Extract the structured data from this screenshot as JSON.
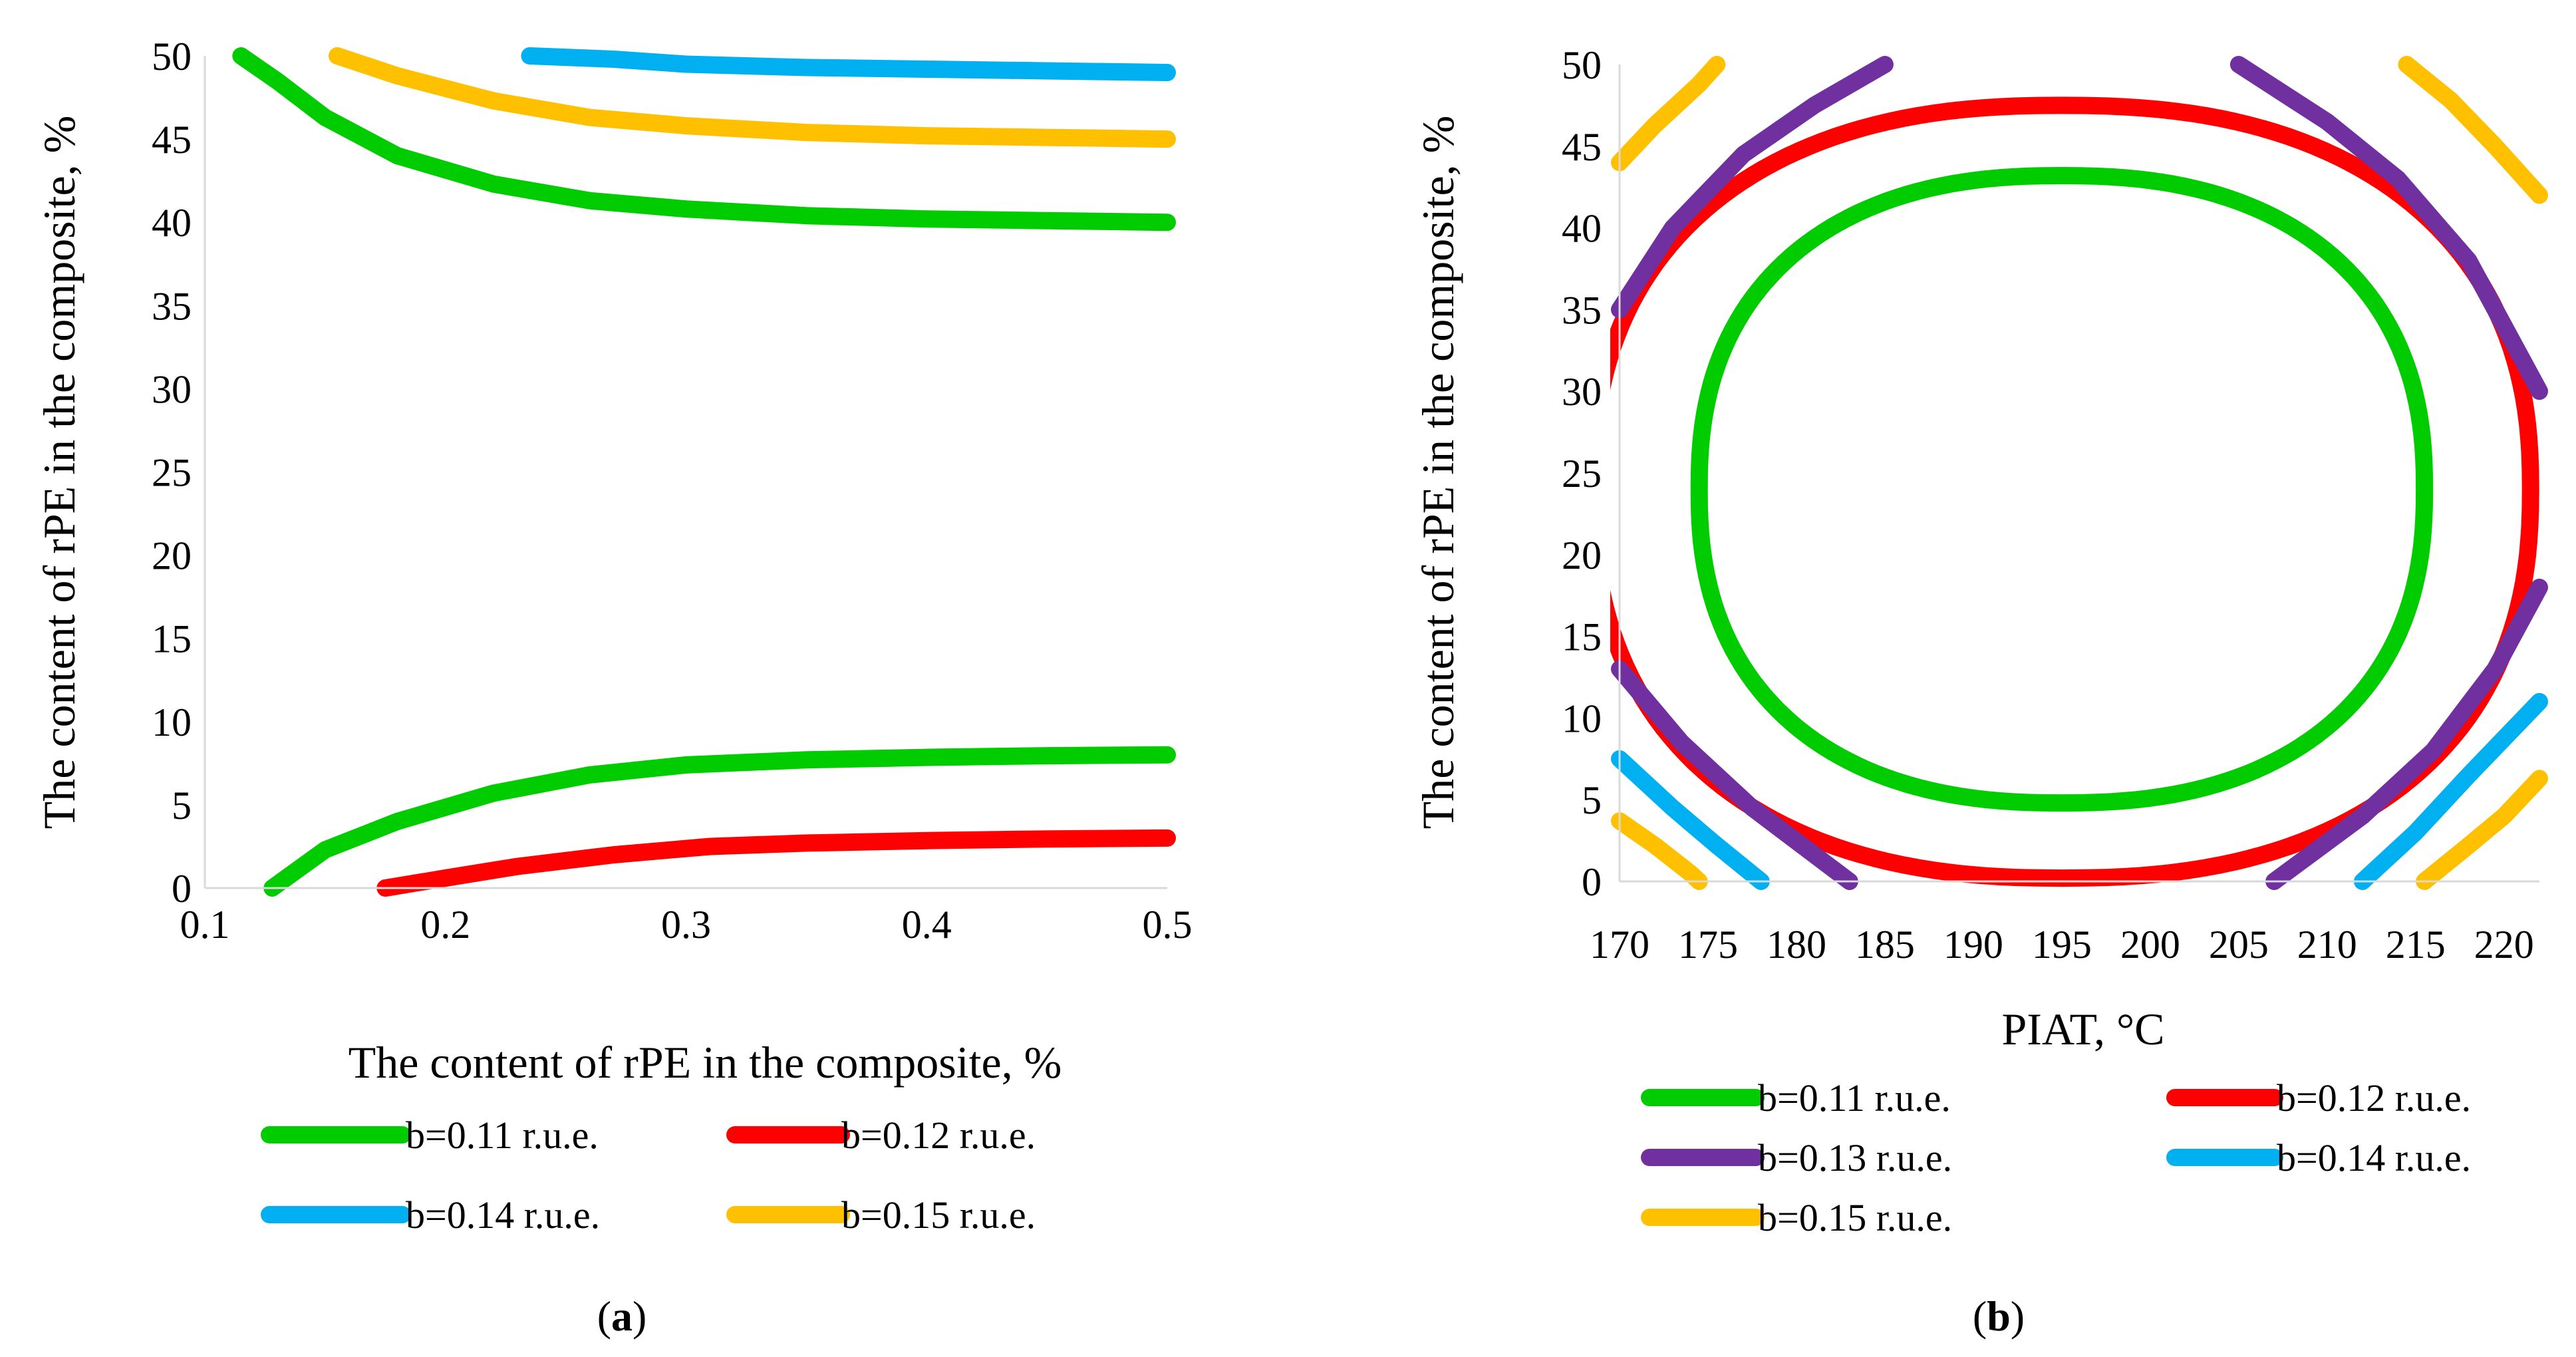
{
  "chart_data": [
    {
      "type": "line",
      "panel": "a",
      "caption": "(a)",
      "caption_letter": "a",
      "title": "",
      "xlabel": "The content of rPE in the composite, %",
      "ylabel": "The content of rPE in the composite, %",
      "xlim": [
        0.1,
        0.5
      ],
      "ylim": [
        0,
        50
      ],
      "xticks": [
        "0.1",
        "0.2",
        "0.3",
        "0.4",
        "0.5"
      ],
      "yticks": [
        "0",
        "5",
        "10",
        "15",
        "20",
        "25",
        "30",
        "35",
        "40",
        "45",
        "50"
      ],
      "grid": false,
      "legend_position": "bottom",
      "series": [
        {
          "name": "b=0.11 r.u.e.",
          "color": "#00cc00",
          "lines": [
            [
              [
                0.115,
                50
              ],
              [
                0.13,
                48.5
              ],
              [
                0.15,
                46.3
              ],
              [
                0.18,
                44
              ],
              [
                0.22,
                42.3
              ],
              [
                0.26,
                41.3
              ],
              [
                0.3,
                40.8
              ],
              [
                0.35,
                40.4
              ],
              [
                0.4,
                40.2
              ],
              [
                0.45,
                40.1
              ],
              [
                0.5,
                40
              ]
            ],
            [
              [
                0.128,
                0
              ],
              [
                0.15,
                2.3
              ],
              [
                0.18,
                4
              ],
              [
                0.22,
                5.7
              ],
              [
                0.26,
                6.8
              ],
              [
                0.3,
                7.4
              ],
              [
                0.35,
                7.7
              ],
              [
                0.4,
                7.85
              ],
              [
                0.45,
                7.95
              ],
              [
                0.5,
                8
              ]
            ]
          ]
        },
        {
          "name": "b=0.12 r.u.e.",
          "color": "#ff0000",
          "lines": [
            [
              [
                0.175,
                0
              ],
              [
                0.2,
                0.6
              ],
              [
                0.23,
                1.3
              ],
              [
                0.27,
                2
              ],
              [
                0.31,
                2.5
              ],
              [
                0.35,
                2.7
              ],
              [
                0.4,
                2.85
              ],
              [
                0.45,
                2.95
              ],
              [
                0.5,
                3
              ]
            ]
          ]
        },
        {
          "name": "b=0.14 r.u.e.",
          "color": "#00b0f0",
          "lines": [
            [
              [
                0.235,
                50
              ],
              [
                0.27,
                49.8
              ],
              [
                0.3,
                49.5
              ],
              [
                0.35,
                49.3
              ],
              [
                0.4,
                49.2
              ],
              [
                0.45,
                49.1
              ],
              [
                0.5,
                49
              ]
            ]
          ]
        },
        {
          "name": "b=0.15 r.u.e.",
          "color": "#ffc000",
          "lines": [
            [
              [
                0.155,
                50
              ],
              [
                0.18,
                48.8
              ],
              [
                0.22,
                47.3
              ],
              [
                0.26,
                46.3
              ],
              [
                0.3,
                45.8
              ],
              [
                0.35,
                45.4
              ],
              [
                0.4,
                45.2
              ],
              [
                0.45,
                45.1
              ],
              [
                0.5,
                45
              ]
            ]
          ]
        }
      ]
    },
    {
      "type": "line",
      "panel": "b",
      "caption": "(b)",
      "caption_letter": "b",
      "title": "",
      "xlabel": "PIAT, °C",
      "ylabel": "The content of rPE in the composite, %",
      "xlim": [
        170,
        222
      ],
      "ylim": [
        0,
        50
      ],
      "xticks": [
        "170",
        "175",
        "180",
        "185",
        "190",
        "195",
        "200",
        "205",
        "210",
        "215",
        "220"
      ],
      "yticks": [
        "0",
        "5",
        "10",
        "15",
        "20",
        "25",
        "30",
        "35",
        "40",
        "45",
        "50"
      ],
      "grid": false,
      "legend_position": "bottom",
      "series": [
        {
          "name": "b=0.11 r.u.e.",
          "color": "#00cc00",
          "ellipse": {
            "cx": 195,
            "cy": 24,
            "rx_left": 20.5,
            "rx_right": 20.5,
            "ry_top": 19.2,
            "ry_bottom": 19.2
          }
        },
        {
          "name": "b=0.12 r.u.e.",
          "color": "#ff0000",
          "ellipse": {
            "cx": 195,
            "cy": 24,
            "rx_left": 26.5,
            "rx_right": 26.5,
            "ry_top": 23.5,
            "ry_bottom": 23.8
          }
        },
        {
          "name": "b=0.13 r.u.e.",
          "color": "#7030a0",
          "lines": [
            [
              [
                170,
                35
              ],
              [
                173,
                40
              ],
              [
                177,
                44.5
              ],
              [
                181,
                47.5
              ],
              [
                185,
                50
              ]
            ],
            [
              [
                205,
                50
              ],
              [
                210,
                46.5
              ],
              [
                214,
                43
              ],
              [
                218,
                38
              ],
              [
                222,
                30
              ]
            ],
            [
              [
                170,
                13
              ],
              [
                173.5,
                8.5
              ],
              [
                177.5,
                4.5
              ],
              [
                183,
                0
              ]
            ],
            [
              [
                207,
                0
              ],
              [
                212,
                4
              ],
              [
                216,
                8
              ],
              [
                219.5,
                13
              ],
              [
                222,
                18
              ]
            ]
          ]
        },
        {
          "name": "b=0.14 r.u.e.",
          "color": "#00b0f0",
          "lines": [
            [
              [
                170,
                7.5
              ],
              [
                173,
                4.5
              ],
              [
                175.5,
                2.2
              ],
              [
                178,
                0
              ]
            ],
            [
              [
                212,
                0
              ],
              [
                215,
                3
              ],
              [
                218,
                6.5
              ],
              [
                222,
                11
              ]
            ]
          ]
        },
        {
          "name": "b=0.15 r.u.e.",
          "color": "#ffc000",
          "lines": [
            [
              [
                170,
                44
              ],
              [
                172,
                46.3
              ],
              [
                174.5,
                48.8
              ],
              [
                175.5,
                50
              ]
            ],
            [
              [
                214.5,
                50
              ],
              [
                217,
                47.8
              ],
              [
                219.5,
                45
              ],
              [
                222,
                42
              ]
            ],
            [
              [
                170,
                3.7
              ],
              [
                172,
                2.2
              ],
              [
                174,
                0.5
              ],
              [
                174.5,
                0
              ]
            ],
            [
              [
                215.5,
                0
              ],
              [
                218,
                2.2
              ],
              [
                220,
                4
              ],
              [
                222,
                6.3
              ]
            ]
          ]
        }
      ]
    }
  ]
}
